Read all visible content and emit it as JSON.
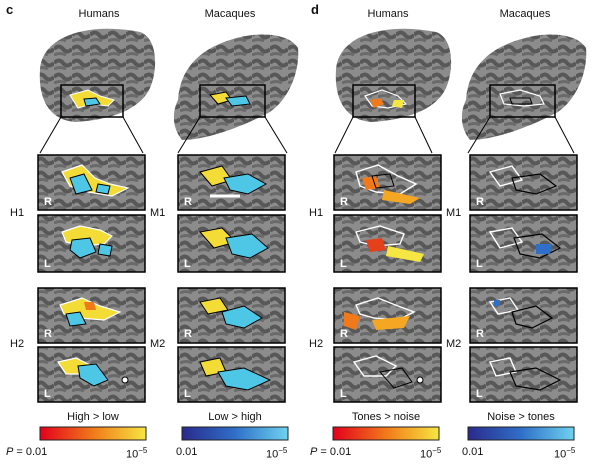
{
  "panels": {
    "c": {
      "letter": "c",
      "col1": "Humans",
      "col2": "Macaques",
      "row1_left": "H1",
      "row1_right": "M1",
      "row2_left": "H2",
      "row2_right": "M2",
      "bar1_title": "High > low",
      "bar2_title": "Low > high"
    },
    "d": {
      "letter": "d",
      "col1": "Humans",
      "col2": "Macaques",
      "row1_left": "H1",
      "row1_right": "M1",
      "row2_left": "H2",
      "row2_right": "M2",
      "bar1_title": "Tones > noise",
      "bar2_title": "Noise > tones"
    }
  },
  "hemisphere": {
    "right": "R",
    "left": "L"
  },
  "scale": {
    "p_label": "P",
    "low_value": "= 0.01",
    "low_plain": "0.01",
    "high_value": "10",
    "high_exp": "−5"
  },
  "colors": {
    "hot_start": "#e3001b",
    "hot_mid": "#f07a1a",
    "hot_end": "#f5e642",
    "cool_start": "#2a2a8c",
    "cool_mid": "#2f6fc8",
    "cool_end": "#6fd2f0",
    "cortex_dark": "#4a4a4a",
    "cortex_light": "#8a8a8a"
  }
}
